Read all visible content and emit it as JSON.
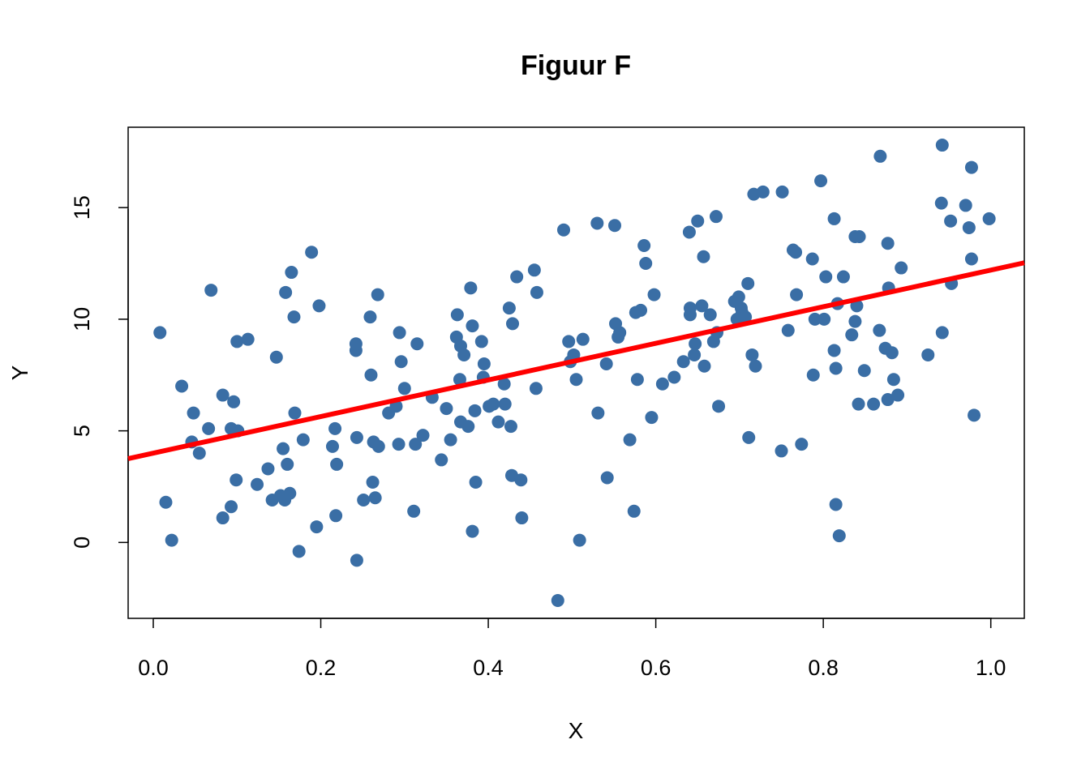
{
  "chart_data": {
    "type": "scatter",
    "title": "Figuur F",
    "xlabel": "X",
    "ylabel": "Y",
    "xlim": [
      -0.03,
      1.04
    ],
    "ylim": [
      -3.4,
      18.6
    ],
    "x_ticks": [
      0.0,
      0.2,
      0.4,
      0.6,
      0.8,
      1.0
    ],
    "x_tick_labels": [
      "0.0",
      "0.2",
      "0.4",
      "0.6",
      "0.8",
      "1.0"
    ],
    "y_ticks": [
      0,
      5,
      10,
      15
    ],
    "y_tick_labels": [
      "0",
      "5",
      "10",
      "15"
    ],
    "grid": false,
    "point_color": "#3A6EA5",
    "line_color": "#FF0000",
    "regression_line": {
      "intercept": 4.0,
      "slope": 8.2
    },
    "points": [
      [
        0.008,
        9.4
      ],
      [
        0.015,
        1.8
      ],
      [
        0.022,
        0.1
      ],
      [
        0.034,
        7.0
      ],
      [
        0.046,
        4.5
      ],
      [
        0.048,
        5.8
      ],
      [
        0.055,
        4.0
      ],
      [
        0.066,
        5.1
      ],
      [
        0.069,
        11.3
      ],
      [
        0.083,
        6.6
      ],
      [
        0.083,
        1.1
      ],
      [
        0.093,
        5.1
      ],
      [
        0.093,
        1.6
      ],
      [
        0.096,
        6.3
      ],
      [
        0.099,
        2.8
      ],
      [
        0.1,
        9.0
      ],
      [
        0.101,
        5.0
      ],
      [
        0.113,
        9.1
      ],
      [
        0.124,
        2.6
      ],
      [
        0.137,
        3.3
      ],
      [
        0.142,
        1.9
      ],
      [
        0.147,
        8.3
      ],
      [
        0.152,
        2.1
      ],
      [
        0.155,
        4.2
      ],
      [
        0.157,
        1.9
      ],
      [
        0.158,
        11.2
      ],
      [
        0.16,
        3.5
      ],
      [
        0.163,
        2.2
      ],
      [
        0.165,
        12.1
      ],
      [
        0.168,
        10.1
      ],
      [
        0.169,
        5.8
      ],
      [
        0.174,
        -0.4
      ],
      [
        0.179,
        4.6
      ],
      [
        0.189,
        13.0
      ],
      [
        0.195,
        0.7
      ],
      [
        0.198,
        10.6
      ],
      [
        0.214,
        4.3
      ],
      [
        0.217,
        5.1
      ],
      [
        0.218,
        1.2
      ],
      [
        0.219,
        3.5
      ],
      [
        0.242,
        8.6
      ],
      [
        0.242,
        8.9
      ],
      [
        0.243,
        4.7
      ],
      [
        0.243,
        -0.8
      ],
      [
        0.251,
        1.9
      ],
      [
        0.259,
        10.1
      ],
      [
        0.26,
        7.5
      ],
      [
        0.262,
        2.7
      ],
      [
        0.263,
        4.5
      ],
      [
        0.265,
        2.0
      ],
      [
        0.268,
        11.1
      ],
      [
        0.269,
        4.3
      ],
      [
        0.281,
        5.8
      ],
      [
        0.29,
        6.1
      ],
      [
        0.293,
        4.4
      ],
      [
        0.294,
        9.4
      ],
      [
        0.296,
        8.1
      ],
      [
        0.3,
        6.9
      ],
      [
        0.311,
        1.4
      ],
      [
        0.313,
        4.4
      ],
      [
        0.315,
        8.9
      ],
      [
        0.322,
        4.8
      ],
      [
        0.333,
        6.5
      ],
      [
        0.344,
        3.7
      ],
      [
        0.35,
        6.0
      ],
      [
        0.355,
        4.6
      ],
      [
        0.362,
        9.2
      ],
      [
        0.363,
        10.2
      ],
      [
        0.366,
        7.3
      ],
      [
        0.367,
        5.4
      ],
      [
        0.367,
        8.8
      ],
      [
        0.371,
        8.4
      ],
      [
        0.376,
        5.2
      ],
      [
        0.379,
        11.4
      ],
      [
        0.381,
        9.7
      ],
      [
        0.381,
        0.5
      ],
      [
        0.384,
        5.9
      ],
      [
        0.385,
        2.7
      ],
      [
        0.392,
        9.0
      ],
      [
        0.394,
        7.4
      ],
      [
        0.395,
        8.0
      ],
      [
        0.401,
        6.1
      ],
      [
        0.406,
        6.2
      ],
      [
        0.412,
        5.4
      ],
      [
        0.419,
        7.1
      ],
      [
        0.42,
        6.2
      ],
      [
        0.425,
        10.5
      ],
      [
        0.427,
        5.2
      ],
      [
        0.428,
        3.0
      ],
      [
        0.429,
        9.8
      ],
      [
        0.434,
        11.9
      ],
      [
        0.439,
        2.8
      ],
      [
        0.44,
        1.1
      ],
      [
        0.455,
        12.2
      ],
      [
        0.457,
        6.9
      ],
      [
        0.458,
        11.2
      ],
      [
        0.483,
        -2.6
      ],
      [
        0.49,
        14.0
      ],
      [
        0.496,
        9.0
      ],
      [
        0.498,
        8.1
      ],
      [
        0.502,
        8.4
      ],
      [
        0.505,
        7.3
      ],
      [
        0.509,
        0.1
      ],
      [
        0.513,
        9.1
      ],
      [
        0.53,
        14.3
      ],
      [
        0.531,
        5.8
      ],
      [
        0.541,
        8.0
      ],
      [
        0.542,
        2.9
      ],
      [
        0.551,
        14.2
      ],
      [
        0.552,
        9.8
      ],
      [
        0.555,
        9.2
      ],
      [
        0.557,
        9.4
      ],
      [
        0.569,
        4.6
      ],
      [
        0.574,
        1.4
      ],
      [
        0.576,
        10.3
      ],
      [
        0.578,
        7.3
      ],
      [
        0.582,
        10.4
      ],
      [
        0.586,
        13.3
      ],
      [
        0.588,
        12.5
      ],
      [
        0.595,
        5.6
      ],
      [
        0.598,
        11.1
      ],
      [
        0.608,
        7.1
      ],
      [
        0.622,
        7.4
      ],
      [
        0.633,
        8.1
      ],
      [
        0.64,
        13.9
      ],
      [
        0.641,
        10.2
      ],
      [
        0.641,
        10.5
      ],
      [
        0.646,
        8.4
      ],
      [
        0.647,
        8.9
      ],
      [
        0.65,
        14.4
      ],
      [
        0.655,
        10.6
      ],
      [
        0.657,
        12.8
      ],
      [
        0.658,
        7.9
      ],
      [
        0.665,
        10.2
      ],
      [
        0.669,
        9.0
      ],
      [
        0.672,
        14.6
      ],
      [
        0.673,
        9.4
      ],
      [
        0.675,
        6.1
      ],
      [
        0.694,
        10.8
      ],
      [
        0.697,
        10.0
      ],
      [
        0.699,
        11.0
      ],
      [
        0.702,
        10.5
      ],
      [
        0.703,
        10.3
      ],
      [
        0.707,
        10.1
      ],
      [
        0.71,
        11.6
      ],
      [
        0.711,
        4.7
      ],
      [
        0.715,
        8.4
      ],
      [
        0.717,
        15.6
      ],
      [
        0.719,
        7.9
      ],
      [
        0.728,
        15.7
      ],
      [
        0.75,
        4.1
      ],
      [
        0.751,
        15.7
      ],
      [
        0.758,
        9.5
      ],
      [
        0.764,
        13.1
      ],
      [
        0.767,
        13.0
      ],
      [
        0.768,
        11.1
      ],
      [
        0.774,
        4.4
      ],
      [
        0.787,
        12.7
      ],
      [
        0.788,
        7.5
      ],
      [
        0.79,
        10.0
      ],
      [
        0.797,
        16.2
      ],
      [
        0.801,
        10.0
      ],
      [
        0.803,
        11.9
      ],
      [
        0.813,
        8.6
      ],
      [
        0.813,
        14.5
      ],
      [
        0.815,
        7.8
      ],
      [
        0.815,
        1.7
      ],
      [
        0.817,
        10.7
      ],
      [
        0.819,
        0.3
      ],
      [
        0.824,
        11.9
      ],
      [
        0.834,
        9.3
      ],
      [
        0.838,
        13.7
      ],
      [
        0.838,
        9.9
      ],
      [
        0.84,
        10.6
      ],
      [
        0.842,
        6.2
      ],
      [
        0.843,
        13.7
      ],
      [
        0.849,
        7.7
      ],
      [
        0.86,
        6.2
      ],
      [
        0.867,
        9.5
      ],
      [
        0.868,
        17.3
      ],
      [
        0.874,
        8.7
      ],
      [
        0.877,
        13.4
      ],
      [
        0.877,
        6.4
      ],
      [
        0.878,
        11.4
      ],
      [
        0.882,
        8.5
      ],
      [
        0.884,
        7.3
      ],
      [
        0.889,
        6.6
      ],
      [
        0.893,
        12.3
      ],
      [
        0.925,
        8.4
      ],
      [
        0.941,
        15.2
      ],
      [
        0.942,
        9.4
      ],
      [
        0.942,
        17.8
      ],
      [
        0.952,
        14.4
      ],
      [
        0.953,
        11.6
      ],
      [
        0.97,
        15.1
      ],
      [
        0.974,
        14.1
      ],
      [
        0.977,
        16.8
      ],
      [
        0.977,
        12.7
      ],
      [
        0.98,
        5.7
      ],
      [
        0.998,
        14.5
      ]
    ]
  }
}
